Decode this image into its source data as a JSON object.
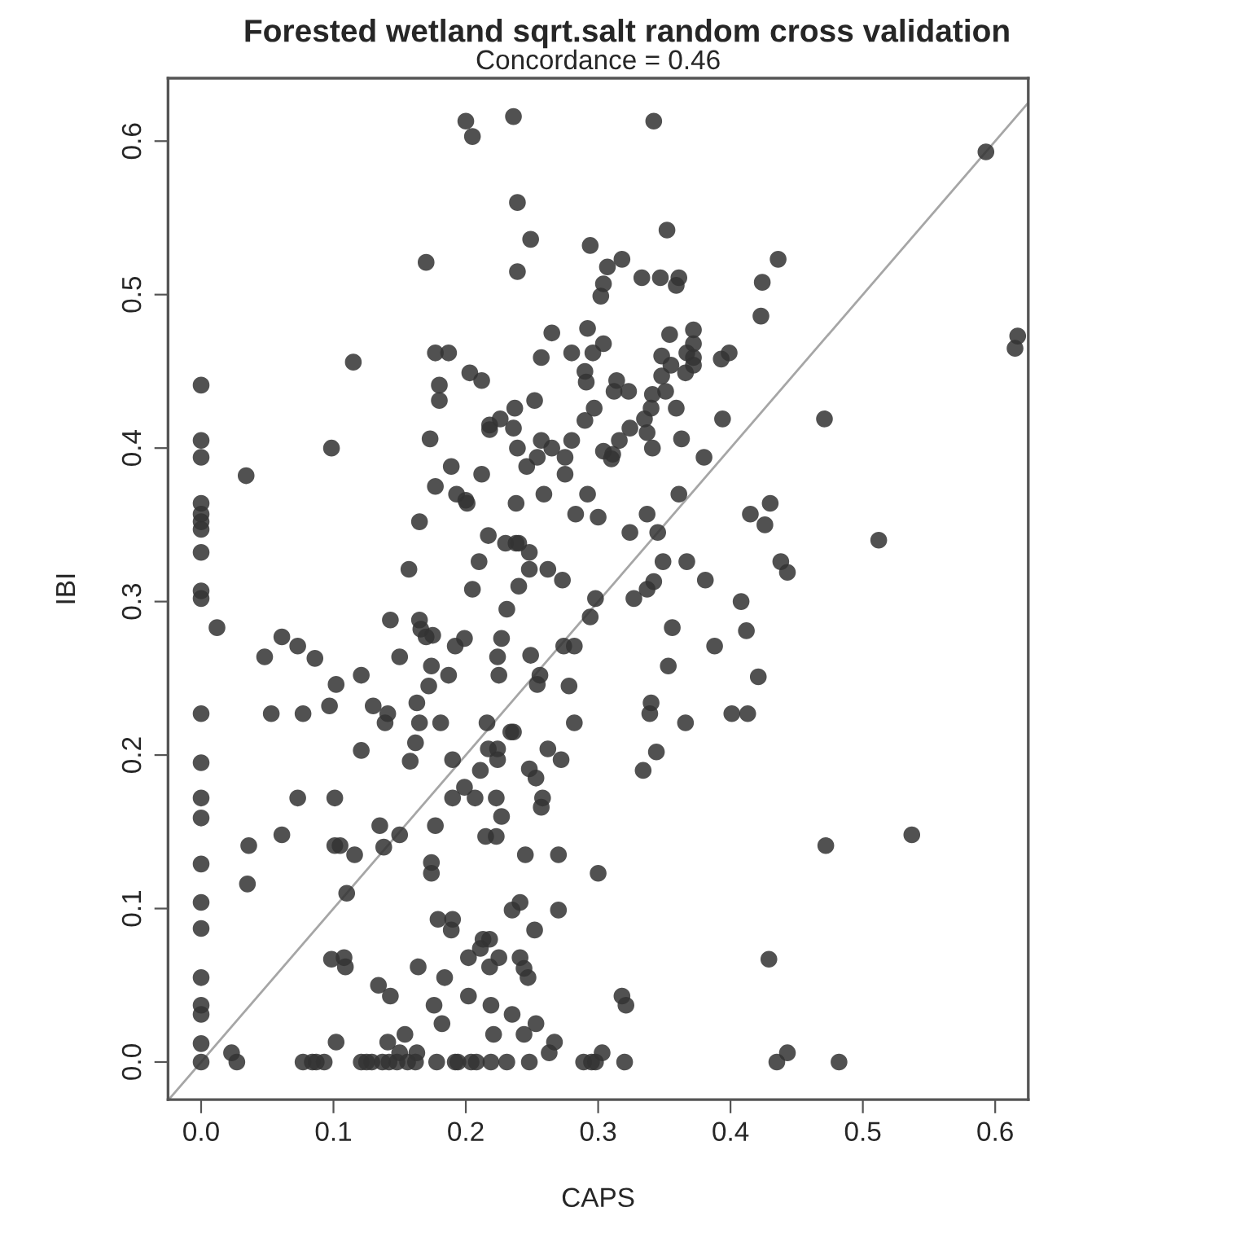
{
  "chart_data": {
    "type": "scatter",
    "title": "Forested wetland sqrt.salt random cross validation",
    "subtitle": "Concordance = 0.46",
    "xlabel": "CAPS",
    "ylabel": "IBI",
    "xlim": [
      -0.025,
      0.625
    ],
    "ylim": [
      -0.0245,
      0.641
    ],
    "xticks": [
      {
        "value": 0,
        "label": "0.0"
      },
      0.1,
      0.2,
      0.3,
      0.4,
      0.5,
      0.6
    ],
    "yticks": [
      {
        "value": 0,
        "label": "0.0"
      },
      0.1,
      0.2,
      0.3,
      0.4,
      0.5,
      0.6
    ],
    "grid": false,
    "legend": false,
    "series": [
      {
        "marker": "circle",
        "color": "#333333",
        "x": [
          0,
          0,
          0,
          0,
          0,
          0,
          0,
          0,
          0,
          0,
          0,
          0,
          0,
          0,
          0,
          0,
          0,
          0,
          0,
          0,
          0,
          0,
          0.034,
          0.0985,
          0.115,
          0.157,
          0.2,
          0.205,
          0.236,
          0.239,
          0.249,
          0.294,
          0.17,
          0.239,
          0.307,
          0.318,
          0.304,
          0.302,
          0.265,
          0.292,
          0.304,
          0.296,
          0.28,
          0.257,
          0.177,
          0.187,
          0.18,
          0.18,
          0.203,
          0.212,
          0.29,
          0.291,
          0.314,
          0.312,
          0.323,
          0.297,
          0.29,
          0.324,
          0.252,
          0.237,
          0.226,
          0.218,
          0.218,
          0.236,
          0.239,
          0.257,
          0.265,
          0.28,
          0.275,
          0.254,
          0.246,
          0.173,
          0.304,
          0.311,
          0.31,
          0.316,
          0.189,
          0.212,
          0.275,
          0.177,
          0.193,
          0.2,
          0.201,
          0.259,
          0.292,
          0.238,
          0.283,
          0.3,
          0.165,
          0.324,
          0.217,
          0.23,
          0.238,
          0.24,
          0.248,
          0.21,
          0.248,
          0.262,
          0.273,
          0.205,
          0.24,
          0.342,
          0.352,
          0.436,
          0.333,
          0.347,
          0.361,
          0.359,
          0.424,
          0.423,
          0.372,
          0.372,
          0.372,
          0.372,
          0.354,
          0.348,
          0.355,
          0.367,
          0.366,
          0.393,
          0.399,
          0.348,
          0.341,
          0.351,
          0.34,
          0.359,
          0.335,
          0.337,
          0.341,
          0.363,
          0.394,
          0.471,
          0.38,
          0.361,
          0.337,
          0.345,
          0.415,
          0.43,
          0.426,
          0.349,
          0.367,
          0.381,
          0.438,
          0.443,
          0.342,
          0.337,
          0.327,
          0.408,
          0.356,
          0.412,
          0.388,
          0.353,
          0.421,
          0.34,
          0.339,
          0.366,
          0.401,
          0.413,
          0.344,
          0.334,
          0.472,
          0.429,
          0.435,
          0.443,
          0.482,
          0.512,
          0.537,
          0.593,
          0.615,
          0.617,
          0.012,
          0.048,
          0.061,
          0.073,
          0.086,
          0.102,
          0.121,
          0.097,
          0.13,
          0.141,
          0.139,
          0.143,
          0.15,
          0.053,
          0.077,
          0.121,
          0.073,
          0.101,
          0.061,
          0.036,
          0.101,
          0.105,
          0.116,
          0.135,
          0.138,
          0.15,
          0.035,
          0.11,
          0.0985,
          0.108,
          0.109,
          0.134,
          0.143,
          0.023,
          0.027,
          0.102,
          0.141,
          0.154,
          0.15,
          0.077,
          0.084,
          0.087,
          0.093,
          0.121,
          0.125,
          0.129,
          0.137,
          0.142,
          0.148,
          0.231,
          0.165,
          0.166,
          0.17,
          0.175,
          0.192,
          0.199,
          0.227,
          0.224,
          0.225,
          0.174,
          0.187,
          0.172,
          0.163,
          0.165,
          0.181,
          0.162,
          0.158,
          0.19,
          0.249,
          0.256,
          0.254,
          0.274,
          0.282,
          0.278,
          0.282,
          0.294,
          0.298,
          0.216,
          0.234,
          0.236,
          0.217,
          0.224,
          0.224,
          0.262,
          0.272,
          0.211,
          0.248,
          0.253,
          0.199,
          0.19,
          0.207,
          0.223,
          0.227,
          0.258,
          0.257,
          0.177,
          0.215,
          0.223,
          0.245,
          0.27,
          0.3,
          0.174,
          0.174,
          0.179,
          0.19,
          0.189,
          0.235,
          0.241,
          0.27,
          0.252,
          0.213,
          0.218,
          0.211,
          0.202,
          0.225,
          0.218,
          0.241,
          0.244,
          0.247,
          0.164,
          0.184,
          0.202,
          0.176,
          0.219,
          0.182,
          0.235,
          0.221,
          0.244,
          0.253,
          0.267,
          0.263,
          0.318,
          0.321,
          0.303,
          0.163,
          0.156,
          0.162,
          0.178,
          0.192,
          0.194,
          0.204,
          0.208,
          0.219,
          0.231,
          0.248,
          0.289,
          0.295,
          0.298,
          0.32
        ],
        "values": [
          0.441,
          0.405,
          0.394,
          0.364,
          0.357,
          0.352,
          0.347,
          0.332,
          0.307,
          0.302,
          0.227,
          0.195,
          0.172,
          0.159,
          0.129,
          0.104,
          0.087,
          0.055,
          0.037,
          0.031,
          0.012,
          0,
          0.382,
          0.4,
          0.456,
          0.321,
          0.613,
          0.603,
          0.616,
          0.56,
          0.536,
          0.532,
          0.521,
          0.515,
          0.518,
          0.523,
          0.507,
          0.499,
          0.475,
          0.478,
          0.468,
          0.462,
          0.462,
          0.459,
          0.462,
          0.462,
          0.441,
          0.431,
          0.449,
          0.444,
          0.45,
          0.443,
          0.444,
          0.437,
          0.437,
          0.426,
          0.418,
          0.413,
          0.431,
          0.426,
          0.419,
          0.415,
          0.412,
          0.413,
          0.4,
          0.405,
          0.4,
          0.405,
          0.394,
          0.394,
          0.388,
          0.406,
          0.398,
          0.396,
          0.393,
          0.405,
          0.388,
          0.383,
          0.383,
          0.375,
          0.37,
          0.366,
          0.364,
          0.37,
          0.37,
          0.364,
          0.357,
          0.355,
          0.352,
          0.345,
          0.343,
          0.338,
          0.338,
          0.338,
          0.332,
          0.326,
          0.321,
          0.321,
          0.314,
          0.308,
          0.31,
          0.613,
          0.542,
          0.523,
          0.511,
          0.511,
          0.511,
          0.506,
          0.508,
          0.486,
          0.477,
          0.468,
          0.459,
          0.454,
          0.474,
          0.46,
          0.454,
          0.462,
          0.449,
          0.458,
          0.462,
          0.447,
          0.435,
          0.437,
          0.426,
          0.426,
          0.419,
          0.41,
          0.4,
          0.406,
          0.419,
          0.419,
          0.394,
          0.37,
          0.357,
          0.345,
          0.357,
          0.364,
          0.35,
          0.326,
          0.326,
          0.314,
          0.326,
          0.319,
          0.313,
          0.308,
          0.302,
          0.3,
          0.283,
          0.281,
          0.271,
          0.258,
          0.251,
          0.234,
          0.227,
          0.221,
          0.227,
          0.227,
          0.202,
          0.19,
          0.141,
          0.067,
          0,
          0.006,
          0,
          0.34,
          0.148,
          0.593,
          0.465,
          0.473,
          0.283,
          0.264,
          0.277,
          0.271,
          0.263,
          0.246,
          0.252,
          0.232,
          0.232,
          0.227,
          0.221,
          0.288,
          0.264,
          0.227,
          0.227,
          0.203,
          0.172,
          0.172,
          0.148,
          0.141,
          0.141,
          0.141,
          0.135,
          0.154,
          0.14,
          0.148,
          0.116,
          0.11,
          0.067,
          0.068,
          0.062,
          0.05,
          0.043,
          0.006,
          0,
          0.013,
          0.013,
          0.018,
          0.006,
          0,
          0,
          0,
          0,
          0,
          0,
          0,
          0,
          0,
          0,
          0.295,
          0.288,
          0.282,
          0.277,
          0.278,
          0.271,
          0.276,
          0.276,
          0.264,
          0.252,
          0.258,
          0.252,
          0.245,
          0.234,
          0.221,
          0.221,
          0.208,
          0.196,
          0.197,
          0.265,
          0.252,
          0.246,
          0.271,
          0.271,
          0.245,
          0.221,
          0.29,
          0.302,
          0.221,
          0.215,
          0.215,
          0.204,
          0.204,
          0.197,
          0.204,
          0.197,
          0.19,
          0.191,
          0.185,
          0.179,
          0.172,
          0.172,
          0.172,
          0.16,
          0.172,
          0.166,
          0.154,
          0.147,
          0.147,
          0.135,
          0.135,
          0.123,
          0.13,
          0.123,
          0.093,
          0.093,
          0.086,
          0.099,
          0.104,
          0.099,
          0.086,
          0.08,
          0.08,
          0.074,
          0.068,
          0.068,
          0.062,
          0.068,
          0.061,
          0.055,
          0.062,
          0.055,
          0.043,
          0.037,
          0.037,
          0.025,
          0.031,
          0.018,
          0.018,
          0.025,
          0.013,
          0.006,
          0.043,
          0.037,
          0.006,
          0.006,
          0,
          0,
          0,
          0,
          0,
          0,
          0,
          0,
          0,
          0,
          0,
          0,
          0,
          0
        ]
      },
      {
        "type": "line",
        "color": "#a6a6a6",
        "x": [
          -0.0245,
          0.625
        ],
        "values": [
          -0.0245,
          0.625
        ]
      }
    ]
  }
}
